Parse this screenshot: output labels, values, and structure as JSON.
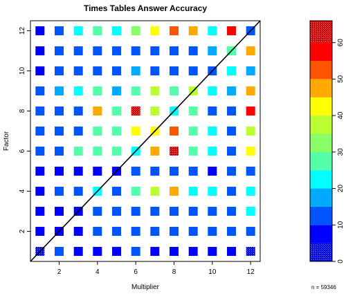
{
  "chart_data": {
    "type": "heatmap",
    "title": "Times Tables Answer Accuracy",
    "xlabel": "Multiplier",
    "ylabel": "Factor",
    "xlim": [
      0.5,
      12.5
    ],
    "ylim": [
      0.5,
      12.5
    ],
    "x_ticks": [
      2,
      4,
      6,
      8,
      10,
      12
    ],
    "y_ticks": [
      2,
      4,
      6,
      8,
      10,
      12
    ],
    "diagonal_line": true,
    "n_label": "n =  59346",
    "colorbar": {
      "ticks": [
        0,
        10,
        20,
        30,
        40,
        50,
        60
      ],
      "min": 0,
      "max": 66,
      "bins": [
        {
          "from": 0,
          "to": 5,
          "color": "#0000d8",
          "pattern": true
        },
        {
          "from": 5,
          "to": 10,
          "color": "#0000ff"
        },
        {
          "from": 10,
          "to": 15,
          "color": "#0055ff"
        },
        {
          "from": 15,
          "to": 20,
          "color": "#00aaff"
        },
        {
          "from": 20,
          "to": 25,
          "color": "#00ffff"
        },
        {
          "from": 25,
          "to": 30,
          "color": "#55ffaa"
        },
        {
          "from": 30,
          "to": 35,
          "color": "#88ff66"
        },
        {
          "from": 35,
          "to": 40,
          "color": "#bbff33"
        },
        {
          "from": 40,
          "to": 45,
          "color": "#ffff00"
        },
        {
          "from": 45,
          "to": 50,
          "color": "#ffaa00"
        },
        {
          "from": 50,
          "to": 55,
          "color": "#ff5500"
        },
        {
          "from": 55,
          "to": 60,
          "color": "#ff0000"
        },
        {
          "from": 60,
          "to": 66,
          "color": "#cc0000",
          "pattern": true
        }
      ]
    },
    "values": [
      [
        4,
        11,
        7,
        7,
        7,
        11,
        7,
        7,
        7,
        7,
        7,
        4
      ],
      [
        7,
        7,
        7,
        11,
        11,
        11,
        11,
        11,
        11,
        11,
        11,
        11
      ],
      [
        7,
        7,
        7,
        11,
        11,
        11,
        11,
        11,
        11,
        11,
        11,
        22
      ],
      [
        7,
        11,
        11,
        22,
        11,
        28,
        37,
        48,
        22,
        22,
        11,
        22
      ],
      [
        7,
        7,
        7,
        7,
        7,
        11,
        11,
        11,
        11,
        7,
        11,
        11
      ],
      [
        11,
        11,
        27,
        27,
        27,
        22,
        48,
        62,
        27,
        22,
        11,
        42
      ],
      [
        11,
        11,
        11,
        27,
        27,
        42,
        42,
        52,
        27,
        22,
        11,
        37
      ],
      [
        11,
        11,
        11,
        48,
        27,
        62,
        37,
        22,
        27,
        11,
        11,
        57
      ],
      [
        11,
        17,
        22,
        27,
        17,
        27,
        37,
        27,
        37,
        22,
        17,
        48
      ],
      [
        7,
        11,
        11,
        11,
        11,
        17,
        11,
        11,
        11,
        11,
        22,
        17
      ],
      [
        7,
        11,
        11,
        11,
        11,
        11,
        11,
        11,
        11,
        17,
        27,
        48
      ],
      [
        7,
        11,
        22,
        27,
        22,
        33,
        42,
        52,
        48,
        22,
        57,
        11
      ]
    ]
  }
}
